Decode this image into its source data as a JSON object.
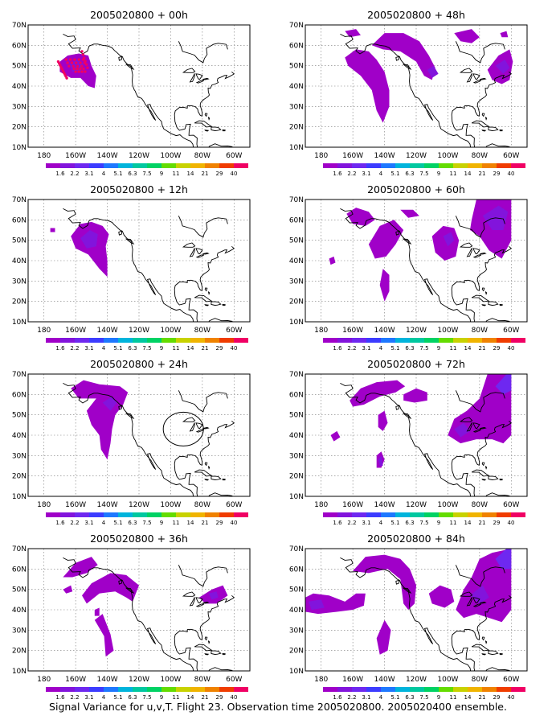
{
  "footer": "Signal Variance for u,v,T. Flight 23. Observation time 2005020800. 2005020400 ensemble.",
  "lat_labels": [
    "10N",
    "20N",
    "30N",
    "40N",
    "50N",
    "60N",
    "70N"
  ],
  "lon_labels": [
    "180",
    "160W",
    "140W",
    "120W",
    "100W",
    "80W",
    "60W"
  ],
  "colorbar": {
    "labels": [
      "1.6",
      "2.2",
      "3.1",
      "4",
      "5.1",
      "6.3",
      "7.5",
      "9",
      "11",
      "14",
      "21",
      "29",
      "40"
    ],
    "colors": [
      "#a000c8",
      "#8214dc",
      "#6e28f0",
      "#3c3cff",
      "#1e78ff",
      "#00b4dc",
      "#00c8a0",
      "#00d264",
      "#64dc00",
      "#c8d200",
      "#f0b400",
      "#f08200",
      "#f03c00",
      "#f00064"
    ]
  },
  "panels": [
    {
      "id": "00h",
      "title": "2005020800 + 00h"
    },
    {
      "id": "48h",
      "title": "2005020800 + 48h"
    },
    {
      "id": "12h",
      "title": "2005020800 + 12h"
    },
    {
      "id": "60h",
      "title": "2005020800 + 60h"
    },
    {
      "id": "24h",
      "title": "2005020800 + 24h"
    },
    {
      "id": "72h",
      "title": "2005020800 + 72h"
    },
    {
      "id": "36h",
      "title": "2005020800 + 36h"
    },
    {
      "id": "84h",
      "title": "2005020800 + 84h"
    }
  ],
  "colors": {
    "light": "#a000c8",
    "mid": "#8214dc",
    "dark": "#6e28f0",
    "obs": "#f00064",
    "grid": "#777777"
  }
}
